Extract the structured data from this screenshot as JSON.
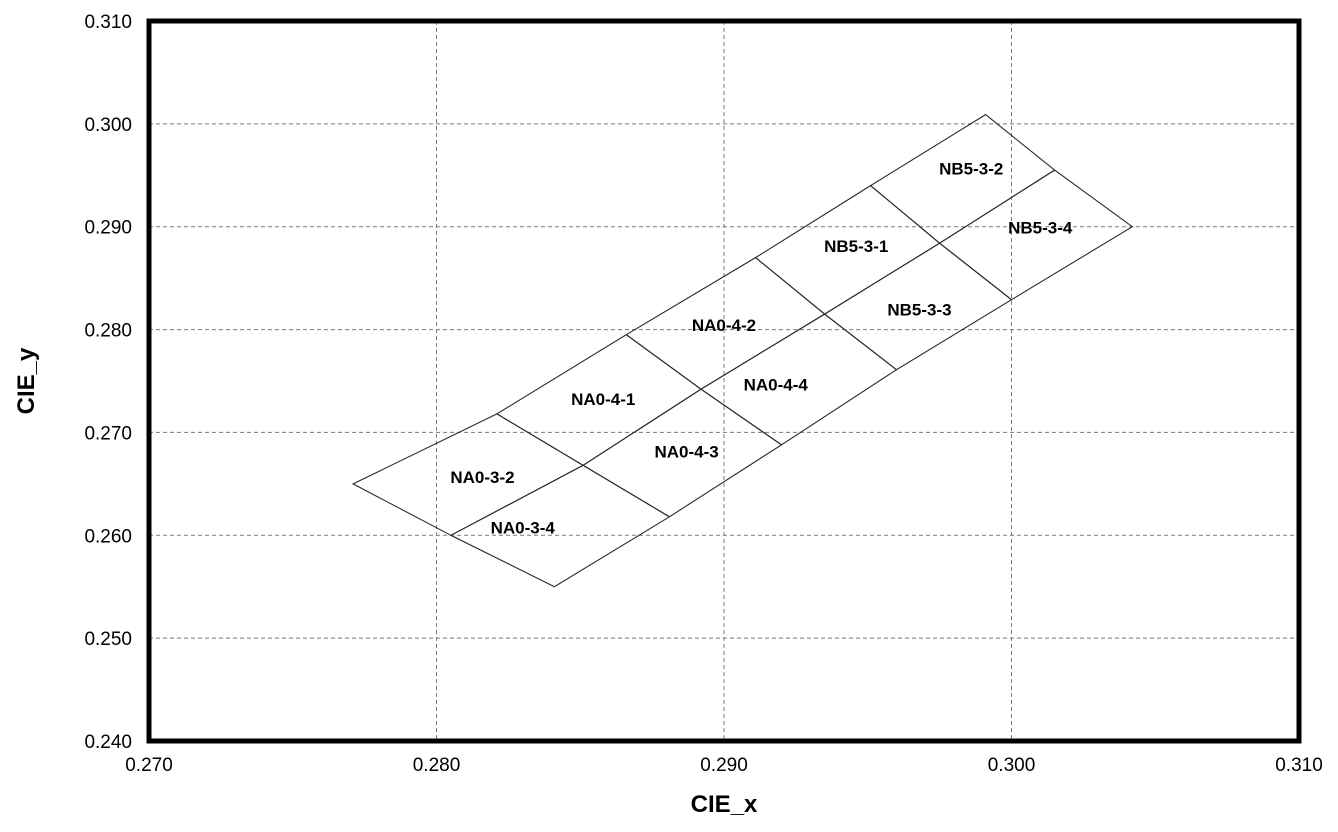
{
  "chart_data": {
    "type": "scatter",
    "xlabel": "CIE_x",
    "ylabel": "CIE_y",
    "xlim": [
      0.27,
      0.31
    ],
    "ylim": [
      0.24,
      0.31
    ],
    "x_ticks": [
      "0.270",
      "0.280",
      "0.290",
      "0.300",
      "0.310"
    ],
    "y_ticks": [
      "0.240",
      "0.250",
      "0.260",
      "0.270",
      "0.280",
      "0.290",
      "0.300",
      "0.310"
    ],
    "grid": true,
    "bins": [
      {
        "label": "NA0-3-2",
        "corners": [
          [
            0.2771,
            0.265
          ],
          [
            0.2821,
            0.2718
          ],
          [
            0.2851,
            0.2668
          ],
          [
            0.2805,
            0.26
          ]
        ]
      },
      {
        "label": "NA0-3-4",
        "corners": [
          [
            0.2805,
            0.26
          ],
          [
            0.2851,
            0.2668
          ],
          [
            0.2881,
            0.2618
          ],
          [
            0.2841,
            0.255
          ]
        ]
      },
      {
        "label": "NA0-4-1",
        "corners": [
          [
            0.2821,
            0.2718
          ],
          [
            0.2866,
            0.2795
          ],
          [
            0.2892,
            0.2742
          ],
          [
            0.2851,
            0.2668
          ]
        ]
      },
      {
        "label": "NA0-4-3",
        "corners": [
          [
            0.2851,
            0.2668
          ],
          [
            0.2892,
            0.2742
          ],
          [
            0.292,
            0.2688
          ],
          [
            0.2881,
            0.2618
          ]
        ]
      },
      {
        "label": "NA0-4-2",
        "corners": [
          [
            0.2866,
            0.2795
          ],
          [
            0.2911,
            0.287
          ],
          [
            0.2935,
            0.2815
          ],
          [
            0.2892,
            0.2742
          ]
        ]
      },
      {
        "label": "NA0-4-4",
        "corners": [
          [
            0.2892,
            0.2742
          ],
          [
            0.2935,
            0.2815
          ],
          [
            0.296,
            0.2761
          ],
          [
            0.292,
            0.2688
          ]
        ]
      },
      {
        "label": "NB5-3-1",
        "corners": [
          [
            0.2911,
            0.287
          ],
          [
            0.2951,
            0.294
          ],
          [
            0.2975,
            0.2884
          ],
          [
            0.2935,
            0.2815
          ]
        ]
      },
      {
        "label": "NB5-3-3",
        "corners": [
          [
            0.2935,
            0.2815
          ],
          [
            0.2975,
            0.2884
          ],
          [
            0.3,
            0.2829
          ],
          [
            0.296,
            0.2761
          ]
        ]
      },
      {
        "label": "NB5-3-2",
        "corners": [
          [
            0.2951,
            0.294
          ],
          [
            0.2991,
            0.3009
          ],
          [
            0.3015,
            0.2955
          ],
          [
            0.2975,
            0.2884
          ]
        ]
      },
      {
        "label": "NB5-3-4",
        "corners": [
          [
            0.2975,
            0.2884
          ],
          [
            0.3015,
            0.2955
          ],
          [
            0.3042,
            0.29
          ],
          [
            0.3,
            0.2829
          ]
        ]
      }
    ],
    "bin_label_positions": {
      "NA0-3-2": [
        0.2816,
        0.2655
      ],
      "NA0-3-4": [
        0.283,
        0.2606
      ],
      "NA0-4-1": [
        0.2858,
        0.2731
      ],
      "NA0-4-3": [
        0.2887,
        0.268
      ],
      "NA0-4-2": [
        0.29,
        0.2803
      ],
      "NA0-4-4": [
        0.2918,
        0.2745
      ],
      "NB5-3-1": [
        0.2946,
        0.288
      ],
      "NB5-3-3": [
        0.2968,
        0.2818
      ],
      "NB5-3-2": [
        0.2986,
        0.2955
      ],
      "NB5-3-4": [
        0.301,
        0.2898
      ]
    }
  }
}
